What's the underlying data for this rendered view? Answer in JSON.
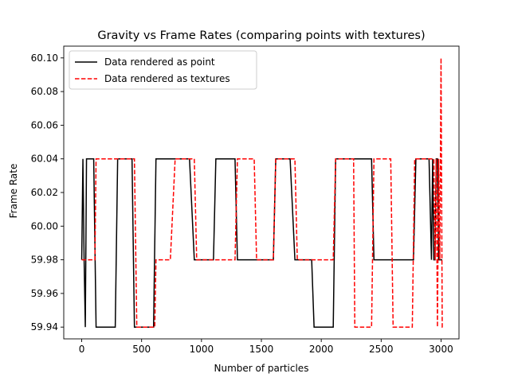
{
  "chart_data": {
    "type": "line",
    "title": "Gravity vs Frame Rates (comparing points with textures)",
    "xlabel": "Number of particles",
    "ylabel": "Frame Rate",
    "xlim": [
      -150,
      3150
    ],
    "ylim": [
      59.933,
      60.107
    ],
    "xticks": [
      0,
      500,
      1000,
      1500,
      2000,
      2500,
      3000
    ],
    "xtick_labels": [
      "0",
      "500",
      "1000",
      "1500",
      "2000",
      "2500",
      "3000"
    ],
    "yticks": [
      59.94,
      59.96,
      59.98,
      60.0,
      60.02,
      60.04,
      60.06,
      60.08,
      60.1
    ],
    "ytick_labels": [
      "59.94",
      "59.96",
      "59.98",
      "60.00",
      "60.02",
      "60.04",
      "60.06",
      "60.08",
      "60.10"
    ],
    "grid": false,
    "legend_position": "upper-left",
    "series": [
      {
        "name": "Data rendered as point",
        "color": "#000000",
        "dash": "solid",
        "x": [
          0,
          10,
          20,
          30,
          40,
          60,
          80,
          100,
          120,
          140,
          160,
          200,
          240,
          280,
          300,
          340,
          380,
          420,
          440,
          480,
          520,
          560,
          600,
          620,
          660,
          700,
          760,
          800,
          860,
          900,
          940,
          960,
          1000,
          1040,
          1080,
          1100,
          1120,
          1160,
          1200,
          1240,
          1280,
          1300,
          1340,
          1380,
          1420,
          1460,
          1500,
          1540,
          1580,
          1600,
          1620,
          1660,
          1700,
          1740,
          1780,
          1800,
          1840,
          1880,
          1920,
          1940,
          1960,
          2000,
          2040,
          2080,
          2100,
          2120,
          2160,
          2200,
          2240,
          2280,
          2300,
          2340,
          2380,
          2420,
          2440,
          2460,
          2500,
          2540,
          2580,
          2620,
          2660,
          2700,
          2740,
          2770,
          2790,
          2820,
          2860,
          2900,
          2920,
          2930,
          2940,
          2950,
          2960,
          2970,
          2980,
          2990,
          3000,
          3010
        ],
        "y": [
          59.98,
          60.04,
          59.98,
          59.94,
          60.04,
          60.04,
          60.04,
          60.04,
          59.94,
          59.94,
          59.94,
          59.94,
          59.94,
          59.94,
          60.04,
          60.04,
          60.04,
          60.04,
          59.94,
          59.94,
          59.94,
          59.94,
          59.94,
          60.04,
          60.04,
          60.04,
          60.04,
          60.04,
          60.04,
          60.04,
          59.98,
          59.98,
          59.98,
          59.98,
          59.98,
          59.98,
          60.04,
          60.04,
          60.04,
          60.04,
          60.04,
          59.98,
          59.98,
          59.98,
          59.98,
          59.98,
          59.98,
          59.98,
          59.98,
          59.98,
          60.04,
          60.04,
          60.04,
          60.04,
          59.98,
          59.98,
          59.98,
          59.98,
          59.98,
          59.94,
          59.94,
          59.94,
          59.94,
          59.94,
          59.94,
          60.04,
          60.04,
          60.04,
          60.04,
          60.04,
          60.04,
          60.04,
          60.04,
          60.04,
          59.98,
          59.98,
          59.98,
          59.98,
          59.98,
          59.98,
          59.98,
          59.98,
          59.98,
          59.98,
          60.04,
          60.04,
          60.04,
          60.04,
          59.98,
          60.04,
          59.98,
          59.98,
          60.04,
          60.04,
          59.98,
          59.98,
          59.98,
          59.98
        ]
      },
      {
        "name": "Data rendered as textures",
        "color": "#ff0000",
        "dash": "dashed",
        "x": [
          0,
          40,
          80,
          110,
          120,
          160,
          200,
          240,
          280,
          320,
          360,
          400,
          440,
          460,
          500,
          540,
          580,
          610,
          620,
          660,
          700,
          740,
          780,
          820,
          860,
          900,
          940,
          960,
          1000,
          1040,
          1080,
          1120,
          1160,
          1200,
          1240,
          1280,
          1300,
          1340,
          1380,
          1420,
          1440,
          1460,
          1500,
          1540,
          1580,
          1600,
          1620,
          1660,
          1700,
          1740,
          1780,
          1800,
          1840,
          1880,
          1920,
          1960,
          2000,
          2040,
          2080,
          2100,
          2120,
          2160,
          2200,
          2240,
          2270,
          2280,
          2300,
          2340,
          2380,
          2420,
          2440,
          2460,
          2500,
          2540,
          2580,
          2600,
          2620,
          2660,
          2700,
          2740,
          2760,
          2780,
          2820,
          2860,
          2900,
          2940,
          2950,
          2960,
          2970,
          2980,
          2990,
          3000,
          3010,
          3020
        ],
        "y": [
          59.98,
          59.98,
          59.98,
          59.98,
          60.04,
          60.04,
          60.04,
          60.04,
          60.04,
          60.04,
          60.04,
          60.04,
          60.04,
          59.94,
          59.94,
          59.94,
          59.94,
          59.94,
          59.98,
          59.98,
          59.98,
          59.98,
          60.04,
          60.04,
          60.04,
          60.04,
          60.04,
          59.98,
          59.98,
          59.98,
          59.98,
          59.98,
          59.98,
          59.98,
          59.98,
          59.98,
          60.04,
          60.04,
          60.04,
          60.04,
          60.04,
          59.98,
          59.98,
          59.98,
          59.98,
          59.98,
          60.04,
          60.04,
          60.04,
          60.04,
          60.04,
          59.98,
          59.98,
          59.98,
          59.98,
          59.98,
          59.98,
          59.98,
          59.98,
          59.98,
          60.04,
          60.04,
          60.04,
          60.04,
          60.04,
          59.94,
          59.94,
          59.94,
          59.94,
          59.94,
          60.04,
          60.04,
          60.04,
          60.04,
          60.04,
          59.94,
          59.94,
          59.94,
          59.94,
          59.94,
          59.94,
          60.04,
          60.04,
          60.04,
          60.04,
          60.04,
          59.98,
          60.04,
          59.94,
          60.04,
          59.98,
          60.1,
          59.94,
          59.94
        ]
      }
    ]
  }
}
